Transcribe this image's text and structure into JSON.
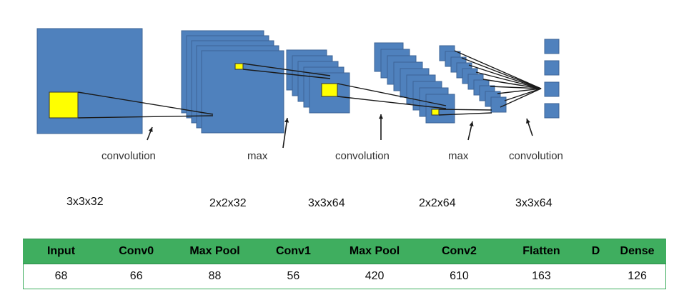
{
  "diagram": {
    "labels": [
      "convolution",
      "max",
      "convolution",
      "max",
      "convolution"
    ],
    "dimensions": [
      "3x3x32",
      "2x2x32",
      "3x3x64",
      "2x2x64",
      "3x3x64"
    ],
    "colors": {
      "feature_map": "#4f81bd",
      "feature_map_border": "#3c6496",
      "kernel": "#ffff00",
      "line": "#1a1a1a"
    }
  },
  "table": {
    "headers": [
      "Input",
      "Conv0",
      "Max Pool",
      "Conv1",
      "Max Pool",
      "Conv2",
      "Flatten",
      "D",
      "Dense"
    ],
    "values": [
      "68",
      "66",
      "88",
      "56",
      "420",
      "610",
      "163",
      "",
      "126"
    ],
    "colors": {
      "header_bg": "#3fae5f"
    }
  }
}
